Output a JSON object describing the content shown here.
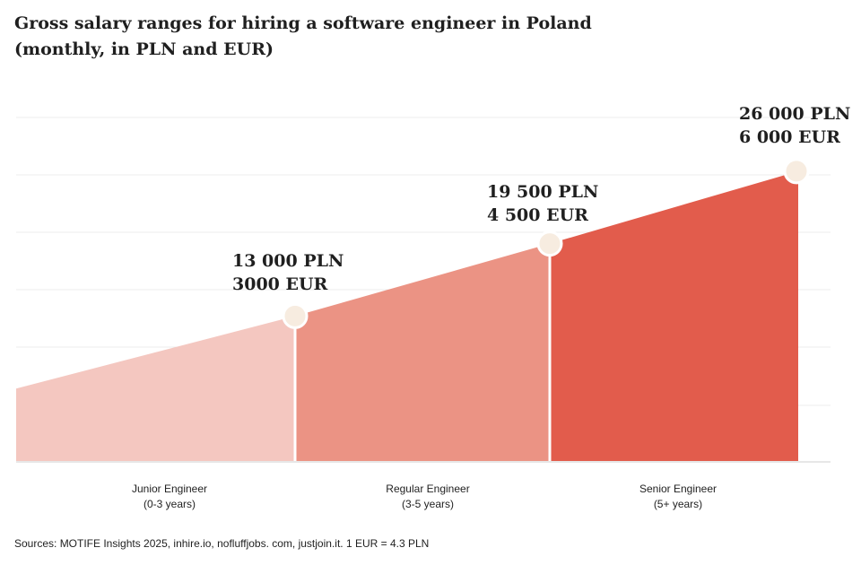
{
  "title_line1": "Gross salary ranges for hiring a software engineer in Poland",
  "title_line2": "(monthly, in PLN and EUR)",
  "source": "Sources: MOTIFE Insights 2025, inhire.io, nofluffjobs. com, justjoin.it. 1 EUR = 4.3 PLN",
  "colors": {
    "junior": "#f4c7c0",
    "regular": "#eb9384",
    "senior": "#e25c4c",
    "marker": "#f7ece0",
    "grid": "#ececec",
    "text": "#1f1f1f"
  },
  "chart_data": {
    "type": "area",
    "title": "Gross salary ranges for hiring a software engineer in Poland (monthly, in PLN and EUR)",
    "ylim": [
      0,
      30000
    ],
    "grid": true,
    "categories": [
      {
        "name": "Junior Engineer",
        "years": "(0-3 years)"
      },
      {
        "name": "Regular Engineer",
        "years": "(3-5 years)"
      },
      {
        "name": "Senior Engineer",
        "years": "(5+ years)"
      }
    ],
    "start_value": 6500,
    "points": [
      {
        "pln": 13000,
        "label_pln": "13 000 PLN",
        "label_eur": "3000 EUR"
      },
      {
        "pln": 19500,
        "label_pln": "19 500 PLN",
        "label_eur": "4 500 EUR"
      },
      {
        "pln": 26000,
        "label_pln": "26 000 PLN",
        "label_eur": "6 000 EUR"
      }
    ]
  }
}
